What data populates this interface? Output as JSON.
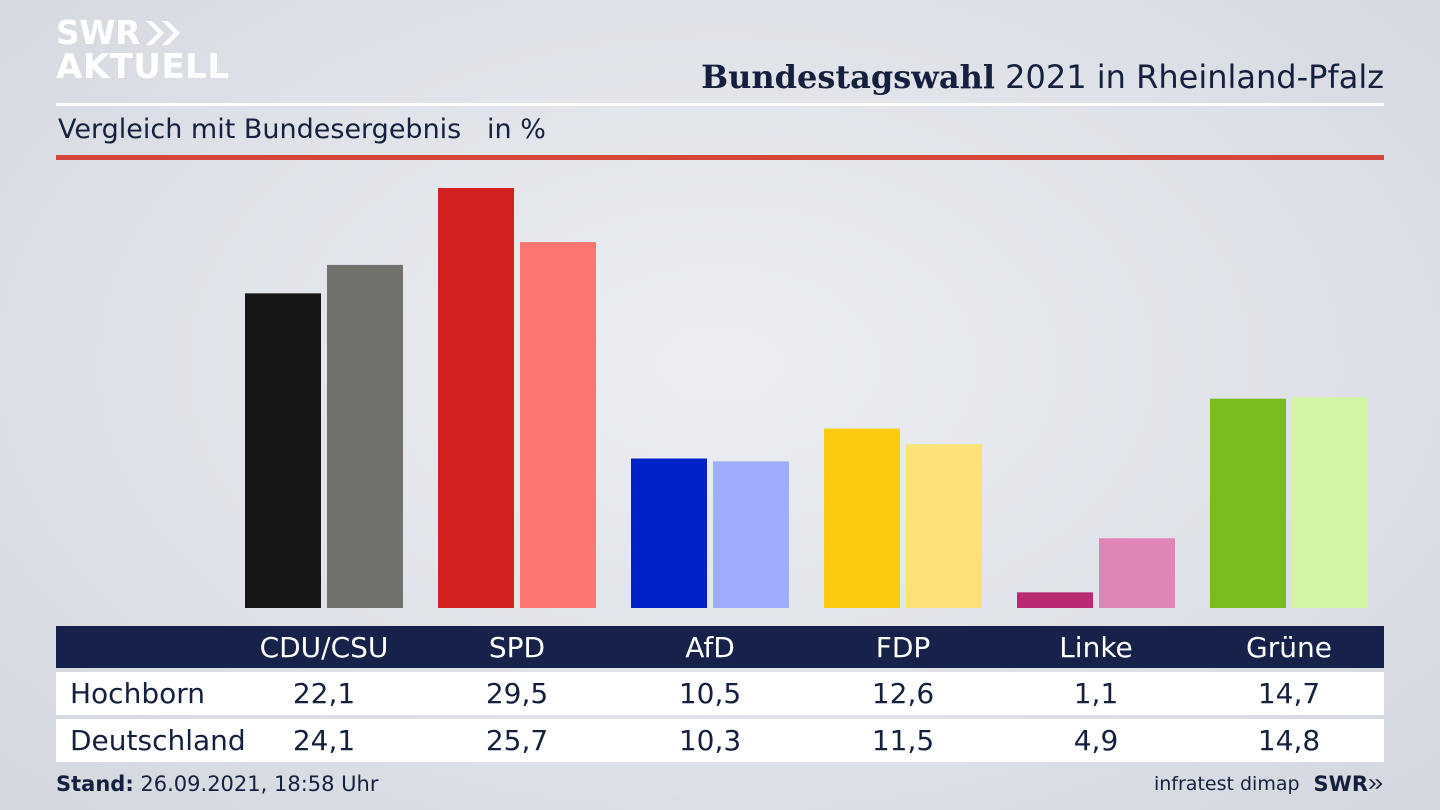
{
  "brand": {
    "logo_line1": "SWR",
    "logo_line2": "AKTUELL",
    "footer_logo": "SWR"
  },
  "header": {
    "title_bold": "Bundestagswahl",
    "title_rest": " 2021 in Rheinland-Pfalz",
    "subtitle": "Vergleich mit Bundesergebnis   in %"
  },
  "footer": {
    "stand_label": "Stand:",
    "stand_value": " 26.09.2021, 18:58 Uhr",
    "source": "infratest dimap"
  },
  "chart_data": {
    "type": "bar",
    "title": "Bundestagswahl 2021 in Rheinland-Pfalz",
    "subtitle": "Vergleich mit Bundesergebnis   in %",
    "categories": [
      "CDU/CSU",
      "SPD",
      "AfD",
      "FDP",
      "Linke",
      "Grüne"
    ],
    "series": [
      {
        "name": "Hochborn",
        "values": [
          "22,1",
          "29,5",
          "10,5",
          "12,6",
          "1,1",
          "14,7"
        ],
        "numeric": [
          22.1,
          29.5,
          10.5,
          12.6,
          1.1,
          14.7
        ]
      },
      {
        "name": "Deutschland",
        "values": [
          "24,1",
          "25,7",
          "10,3",
          "11,5",
          "4,9",
          "14,8"
        ],
        "numeric": [
          24.1,
          25.7,
          10.3,
          11.5,
          4.9,
          14.8
        ]
      }
    ],
    "colors": {
      "Hochborn": [
        "#161616",
        "#d42020",
        "#0022c8",
        "#fccb10",
        "#b82a72",
        "#79bc1e"
      ],
      "Deutschland": [
        "#73716e",
        "#fd7570",
        "#9eaefc",
        "#fce275",
        "#df86b6",
        "#d3f4a6"
      ]
    },
    "ylim": [
      0,
      29.5
    ],
    "grid": false,
    "legend": "table-below"
  }
}
